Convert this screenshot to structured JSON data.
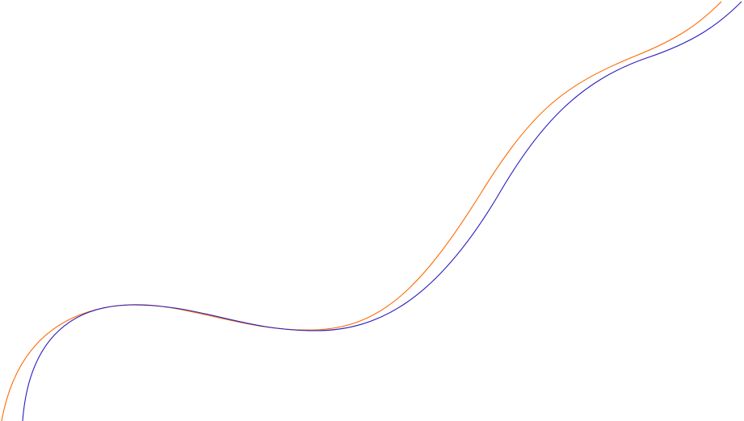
{
  "background_color": "#ffffff",
  "curves": [
    {
      "color": "#ff6a00",
      "stroke_name": "orange"
    },
    {
      "color": "#2a1dbf",
      "stroke_name": "blue"
    }
  ]
}
